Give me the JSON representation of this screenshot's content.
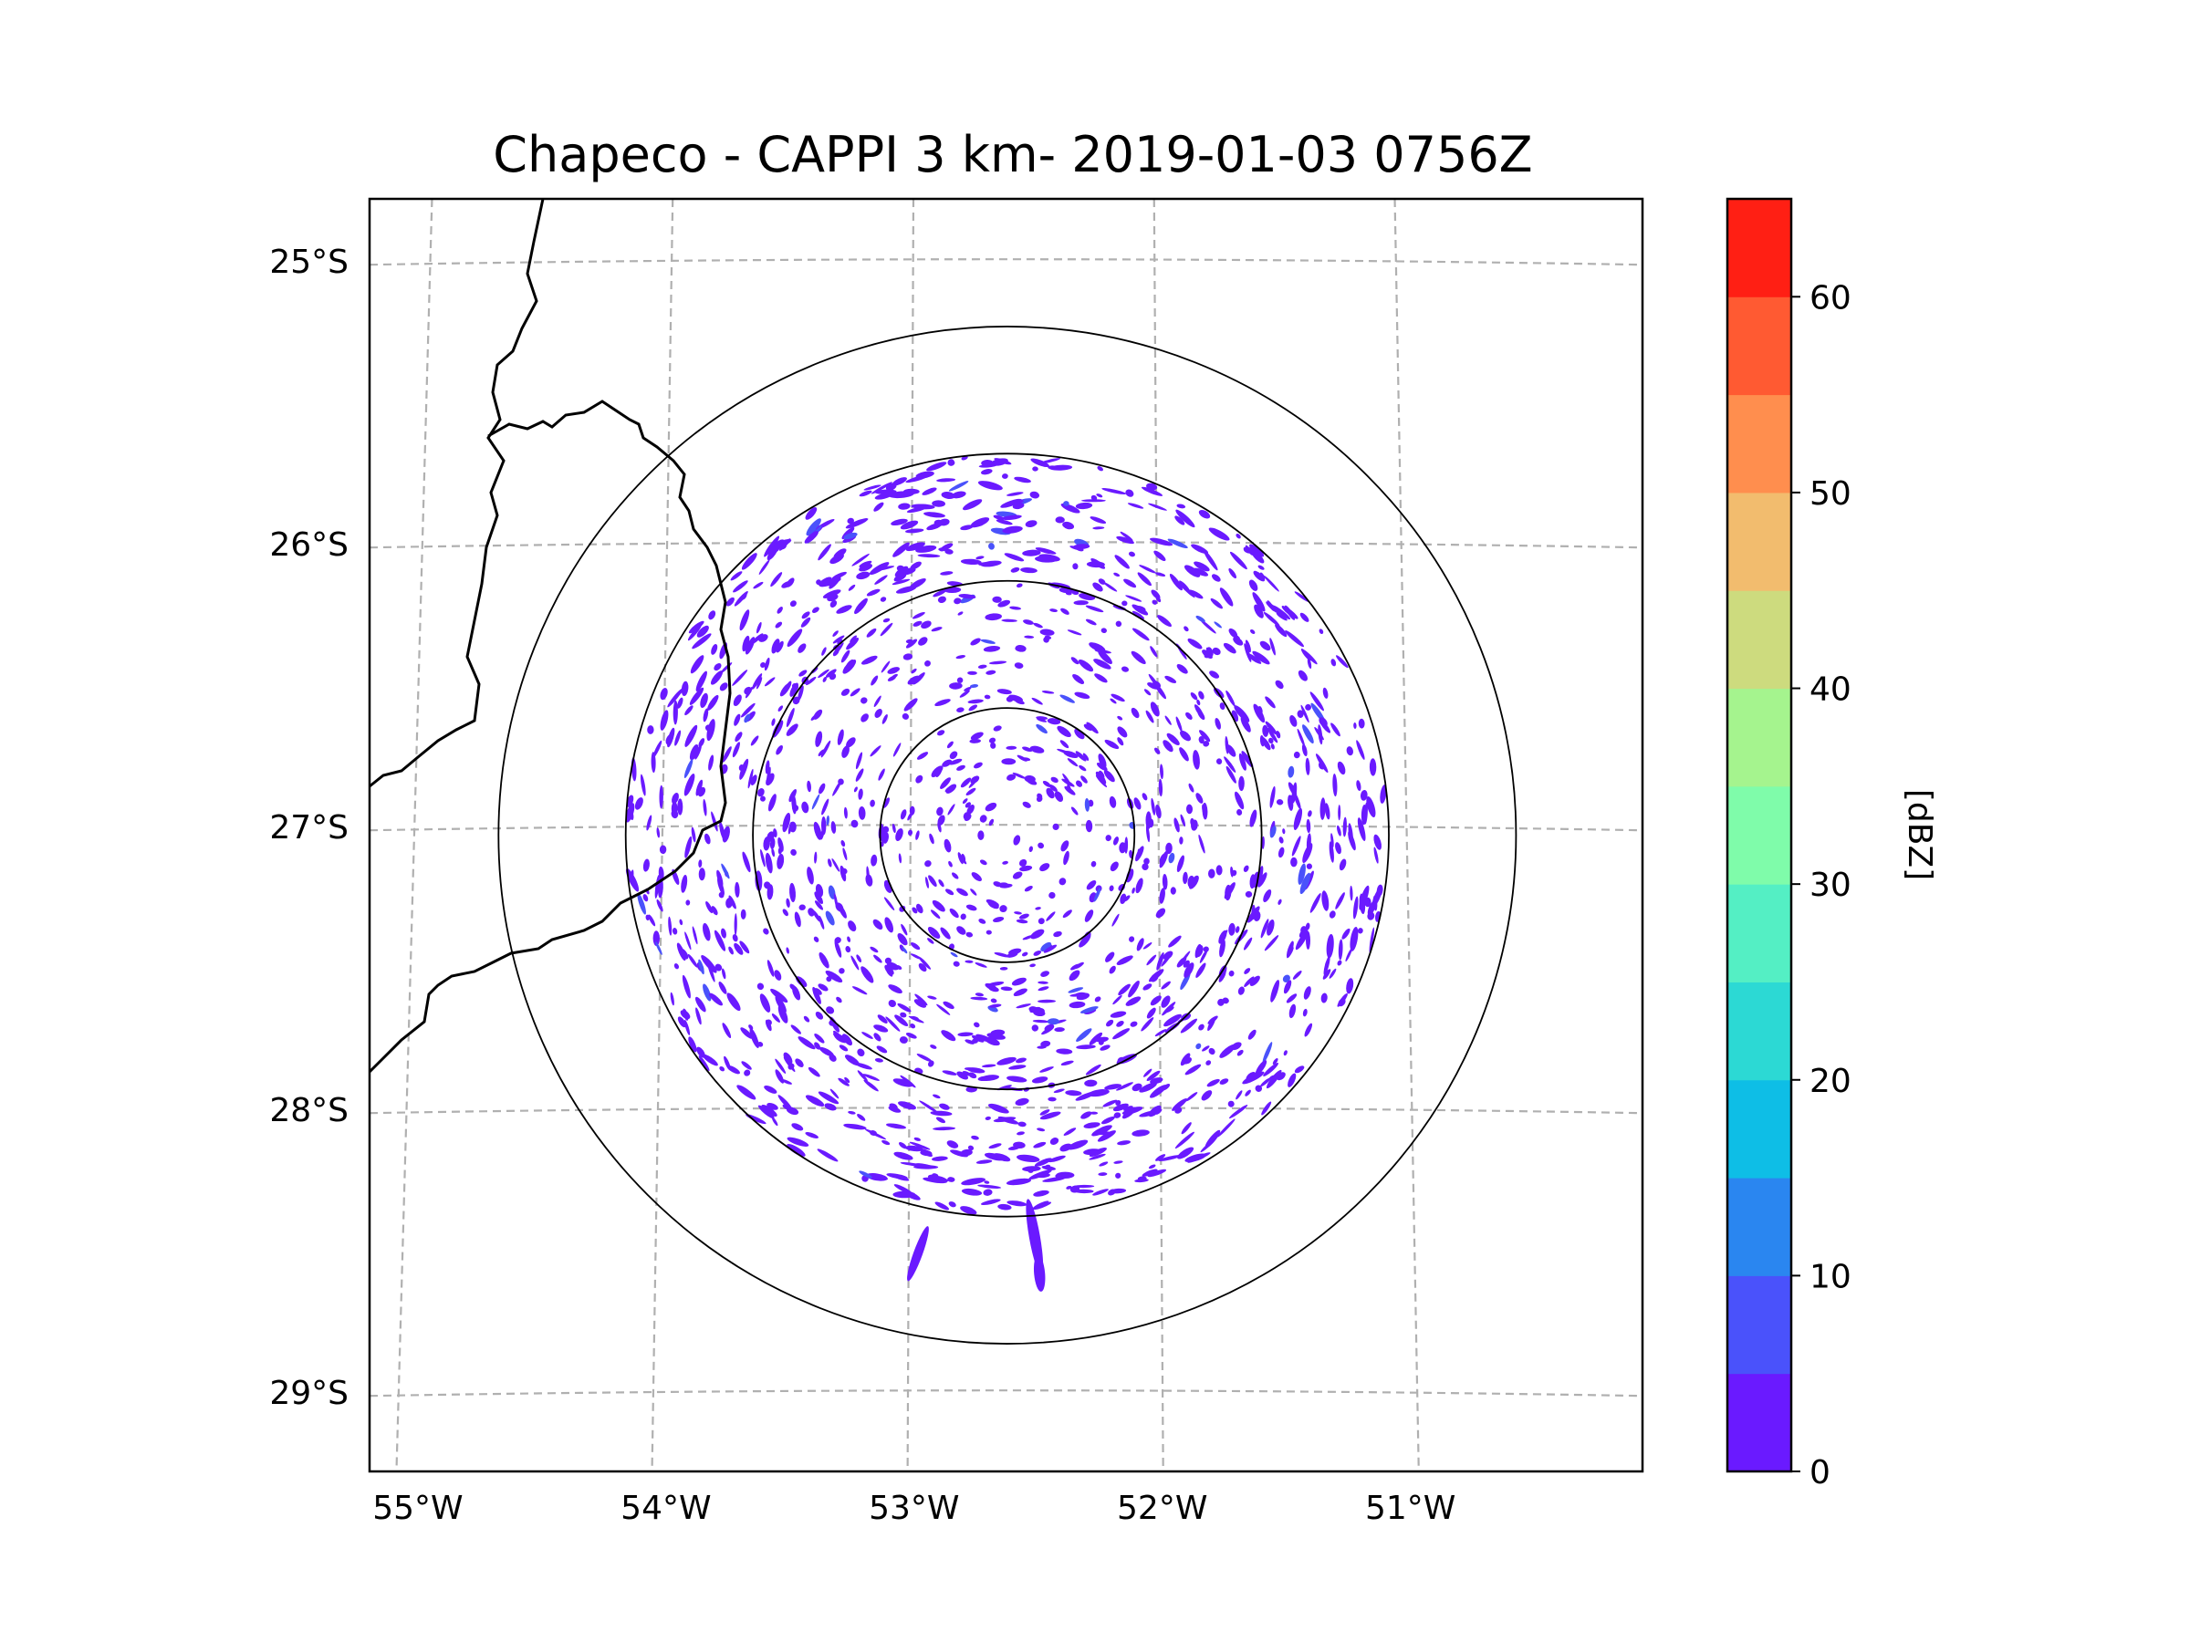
{
  "title": "Chapeco - CAPPI 3 km- 2019-01-03 0756Z",
  "map": {
    "lon_range": [
      -55.18,
      -50.05
    ],
    "lat_range": [
      -29.28,
      -24.78
    ],
    "radar_center": {
      "lon": -52.61,
      "lat": -27.03
    },
    "range_rings_km": [
      50,
      100,
      150,
      200
    ],
    "graticule_style": "dashed gray",
    "lat_ticks": [
      {
        "value": -25,
        "label": "25°S"
      },
      {
        "value": -26,
        "label": "26°S"
      },
      {
        "value": -27,
        "label": "27°S"
      },
      {
        "value": -28,
        "label": "28°S"
      },
      {
        "value": -29,
        "label": "29°S"
      }
    ],
    "lon_ticks": [
      {
        "value": -55,
        "label": "55°W"
      },
      {
        "value": -54,
        "label": "54°W"
      },
      {
        "value": -53,
        "label": "53°W"
      },
      {
        "value": -52,
        "label": "52°W"
      },
      {
        "value": -51,
        "label": "51°W"
      }
    ],
    "echo_color": "#6a1aff",
    "echo_range_dbz": [
      0,
      10
    ],
    "echo_description": "scattered weak echoes within the 150 km ring"
  },
  "colorbar": {
    "label": "[dBZ]",
    "min": 0,
    "max": 65,
    "ticks": [
      {
        "value": 0,
        "label": "0"
      },
      {
        "value": 10,
        "label": "10"
      },
      {
        "value": 20,
        "label": "20"
      },
      {
        "value": 30,
        "label": "30"
      },
      {
        "value": 40,
        "label": "40"
      },
      {
        "value": 50,
        "label": "50"
      },
      {
        "value": 60,
        "label": "60"
      }
    ],
    "bins": [
      {
        "from": 0,
        "to": 5,
        "color": "#6a1aff"
      },
      {
        "from": 5,
        "to": 10,
        "color": "#4a52fb"
      },
      {
        "from": 10,
        "to": 15,
        "color": "#2a86f0"
      },
      {
        "from": 15,
        "to": 20,
        "color": "#0ebee6"
      },
      {
        "from": 20,
        "to": 25,
        "color": "#2cd9d4"
      },
      {
        "from": 25,
        "to": 30,
        "color": "#54efc4"
      },
      {
        "from": 30,
        "to": 35,
        "color": "#7ffcaa"
      },
      {
        "from": 35,
        "to": 40,
        "color": "#a5f48e"
      },
      {
        "from": 40,
        "to": 45,
        "color": "#cddb7e"
      },
      {
        "from": 45,
        "to": 50,
        "color": "#f2bc6e"
      },
      {
        "from": 50,
        "to": 55,
        "color": "#ff8e4e"
      },
      {
        "from": 55,
        "to": 60,
        "color": "#ff5a32"
      },
      {
        "from": 60,
        "to": 65,
        "color": "#ff1f14"
      }
    ]
  }
}
